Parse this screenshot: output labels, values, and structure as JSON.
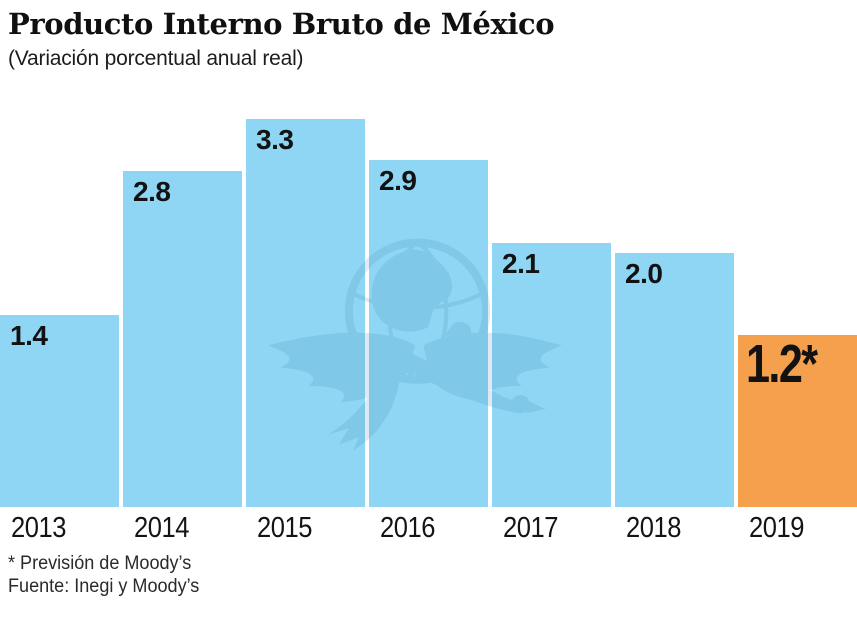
{
  "header": {
    "title": "Producto Interno Bruto de México",
    "subtitle": "(Variación porcentual anual real)"
  },
  "footer": {
    "note": "* Previsión de Moody’s",
    "source": "Fuente: Inegi y Moody’s"
  },
  "colors": {
    "bar": "#8ED6F4",
    "highlight": "#F5A04C",
    "value_label": "#121212",
    "watermark": "#3F85AD"
  },
  "watermark_icon": "eagle-globe-logo-watermark",
  "chart_data": {
    "type": "bar",
    "title": "Producto Interno Bruto de México",
    "subtitle": "(Variación porcentual anual real)",
    "categories": [
      "2013",
      "2014",
      "2015",
      "2016",
      "2017",
      "2018",
      "2019"
    ],
    "values": [
      1.4,
      2.8,
      3.3,
      2.9,
      2.1,
      2.0,
      1.2
    ],
    "value_labels": [
      "1.4",
      "2.8",
      "3.3",
      "2.9",
      "2.1",
      "2.0",
      "1.2*"
    ],
    "highlight_index": 6,
    "bar_color": "#8ED6F4",
    "highlight_color": "#F5A04C",
    "xlabel": "",
    "ylabel": "",
    "ylim": [
      0,
      3.5
    ],
    "grid": false,
    "legend": false,
    "value_label_position": "inside-top-left"
  }
}
